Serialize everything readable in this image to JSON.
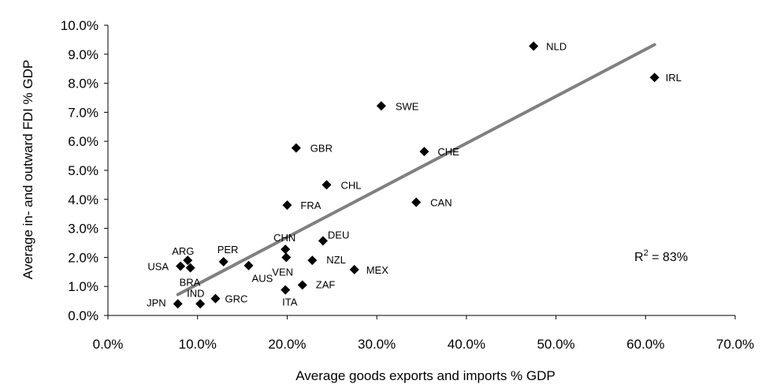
{
  "chart_data": {
    "type": "scatter",
    "xlabel": "Average goods exports and imports % GDP",
    "ylabel": "Average in- and outward FDI % GDP",
    "xlim": [
      0,
      70
    ],
    "ylim": [
      0,
      10
    ],
    "x_ticks": [
      "0.0%",
      "10.0%",
      "20.0%",
      "30.0%",
      "40.0%",
      "50.0%",
      "60.0%",
      "70.0%"
    ],
    "y_ticks": [
      "0.0%",
      "1.0%",
      "2.0%",
      "3.0%",
      "4.0%",
      "5.0%",
      "6.0%",
      "7.0%",
      "8.0%",
      "9.0%",
      "10.0%"
    ],
    "grid": false,
    "points": [
      {
        "label": "NLD",
        "x": 47.5,
        "y": 9.28
      },
      {
        "label": "IRL",
        "x": 61.0,
        "y": 8.2
      },
      {
        "label": "SWE",
        "x": 30.5,
        "y": 7.22
      },
      {
        "label": "GBR",
        "x": 21.0,
        "y": 5.77
      },
      {
        "label": "CHE",
        "x": 35.3,
        "y": 5.65
      },
      {
        "label": "CHL",
        "x": 24.4,
        "y": 4.5
      },
      {
        "label": "CAN",
        "x": 34.4,
        "y": 3.9
      },
      {
        "label": "FRA",
        "x": 20.0,
        "y": 3.8
      },
      {
        "label": "DEU",
        "x": 24.0,
        "y": 2.57
      },
      {
        "label": "CHN",
        "x": 19.8,
        "y": 2.28
      },
      {
        "label": "VEN",
        "x": 19.9,
        "y": 2.0
      },
      {
        "label": "NZL",
        "x": 22.8,
        "y": 1.9
      },
      {
        "label": "MEX",
        "x": 27.5,
        "y": 1.58
      },
      {
        "label": "PER",
        "x": 12.9,
        "y": 1.85
      },
      {
        "label": "AUS",
        "x": 15.7,
        "y": 1.72
      },
      {
        "label": "ARG",
        "x": 8.9,
        "y": 1.9
      },
      {
        "label": "USA",
        "x": 8.1,
        "y": 1.7
      },
      {
        "label": "BRA",
        "x": 9.2,
        "y": 1.64
      },
      {
        "label": "ZAF",
        "x": 21.7,
        "y": 1.05
      },
      {
        "label": "ITA",
        "x": 19.8,
        "y": 0.88
      },
      {
        "label": "GRC",
        "x": 12.0,
        "y": 0.58
      },
      {
        "label": "IND",
        "x": 10.3,
        "y": 0.4
      },
      {
        "label": "JPN",
        "x": 7.8,
        "y": 0.4
      }
    ],
    "trendline": {
      "x": [
        7.8,
        61.0
      ],
      "y": [
        0.72,
        9.33
      ]
    },
    "annotation": {
      "r2_prefix": "R",
      "r2_sup": "2",
      "r2_suffix": " = 83%"
    }
  }
}
